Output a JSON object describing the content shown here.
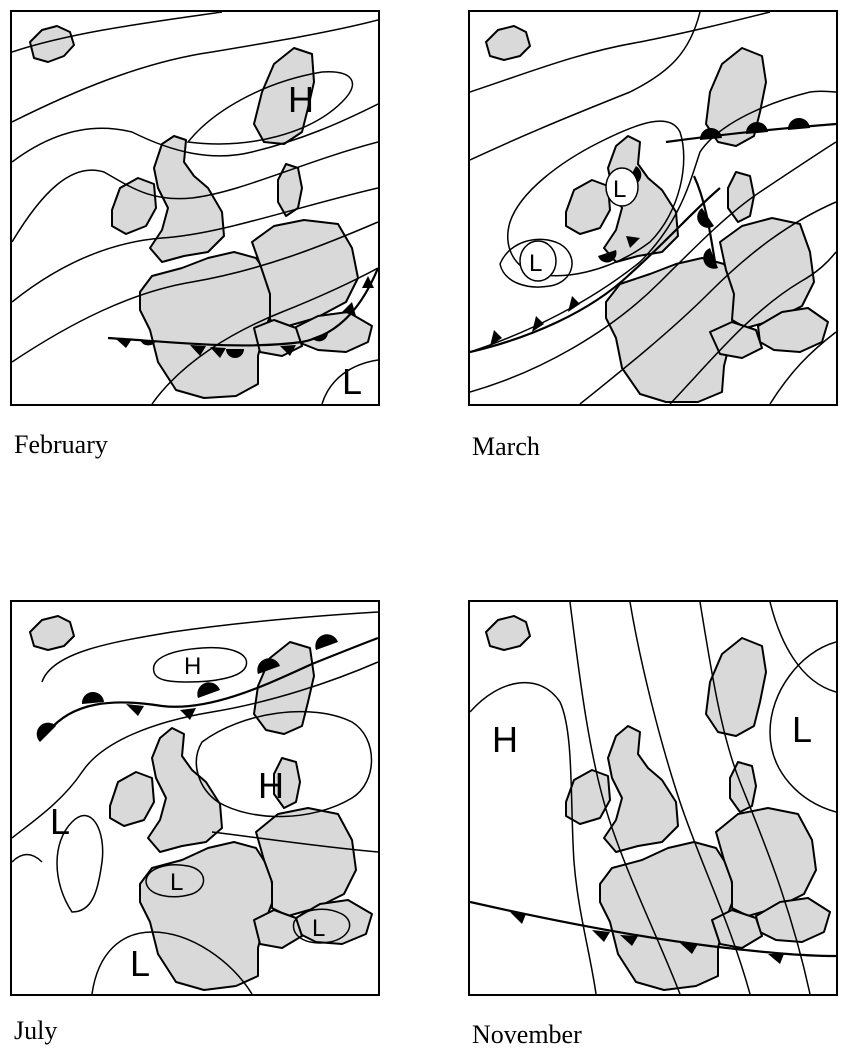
{
  "maps": [
    {
      "caption": "February",
      "centers": [
        "H",
        "L"
      ]
    },
    {
      "caption": "March",
      "centers": [
        "L",
        "L"
      ]
    },
    {
      "caption": "July",
      "centers": [
        "H",
        "H",
        "L",
        "L",
        "L",
        "L"
      ]
    },
    {
      "caption": "November",
      "centers": [
        "H",
        "L"
      ]
    }
  ],
  "colors": {
    "land": "#d9d9d9",
    "line": "#000000"
  }
}
